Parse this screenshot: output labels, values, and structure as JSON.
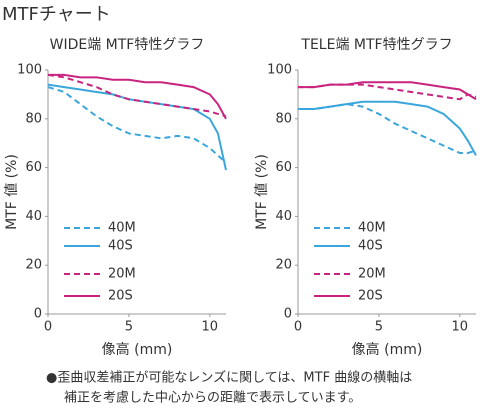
{
  "title": "MTFチャート",
  "note": [
    "●歪曲収差補正が可能なレンズに関しては、MTF 曲線の横軸は",
    "補正を考慮した中心からの距離で表示しています。"
  ],
  "chart_data": [
    {
      "type": "line",
      "title": "WIDE端 MTF特性グラフ",
      "xlabel": "像高 (mm)",
      "ylabel": "MTF 値 (%)",
      "x": [
        0,
        1,
        2,
        3,
        4,
        5,
        6,
        7,
        8,
        9,
        10,
        10.5,
        11
      ],
      "xlim": [
        0,
        11
      ],
      "xticks": [
        0,
        5,
        10
      ],
      "ylim": [
        0,
        100
      ],
      "yticks": [
        0,
        20,
        40,
        60,
        80,
        100
      ],
      "series": [
        {
          "name": "40M",
          "color": "#3aa6dc",
          "dashed": true,
          "values": [
            93,
            91,
            86,
            81,
            77,
            74,
            73,
            72,
            73,
            72,
            68,
            65,
            62
          ]
        },
        {
          "name": "40S",
          "color": "#3aa6dc",
          "dashed": false,
          "values": [
            94,
            93,
            92,
            91,
            90,
            88,
            87,
            86,
            85,
            84,
            80,
            74,
            59
          ]
        },
        {
          "name": "20M",
          "color": "#c8237f",
          "dashed": true,
          "values": [
            98,
            97,
            95,
            93,
            90,
            88,
            87,
            86,
            85,
            84,
            83,
            82,
            81
          ]
        },
        {
          "name": "20S",
          "color": "#c8237f",
          "dashed": false,
          "values": [
            98,
            98,
            97,
            97,
            96,
            96,
            95,
            95,
            94,
            93,
            90,
            86,
            80
          ]
        }
      ]
    },
    {
      "type": "line",
      "title": "TELE端 MTF特性グラフ",
      "xlabel": "像高 (mm)",
      "ylabel": "MTF 値 (%)",
      "x": [
        0,
        1,
        2,
        3,
        4,
        5,
        6,
        7,
        8,
        9,
        10,
        10.5,
        11
      ],
      "xlim": [
        0,
        11
      ],
      "xticks": [
        0,
        5,
        10
      ],
      "ylim": [
        0,
        100
      ],
      "yticks": [
        0,
        20,
        40,
        60,
        80,
        100
      ],
      "series": [
        {
          "name": "40M",
          "color": "#3aa6dc",
          "dashed": true,
          "values": [
            84,
            84,
            85,
            86,
            85,
            82,
            78,
            75,
            72,
            69,
            66,
            66,
            67
          ]
        },
        {
          "name": "40S",
          "color": "#3aa6dc",
          "dashed": false,
          "values": [
            84,
            84,
            85,
            86,
            87,
            87,
            87,
            86,
            85,
            82,
            76,
            71,
            65
          ]
        },
        {
          "name": "20M",
          "color": "#c8237f",
          "dashed": true,
          "values": [
            93,
            93,
            94,
            94,
            94,
            93,
            92,
            91,
            90,
            89,
            88,
            90,
            89
          ]
        },
        {
          "name": "20S",
          "color": "#c8237f",
          "dashed": false,
          "values": [
            93,
            93,
            94,
            94,
            95,
            95,
            95,
            95,
            94,
            93,
            92,
            90,
            88
          ]
        }
      ]
    }
  ]
}
